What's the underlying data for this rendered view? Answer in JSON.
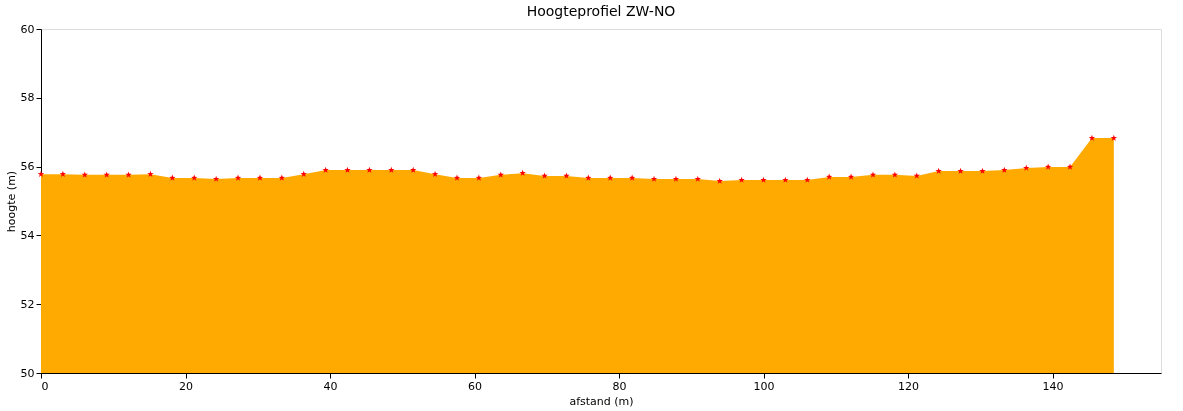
{
  "chart_data": {
    "type": "area",
    "title": "Hoogteprofiel ZW-NO",
    "xlabel": "afstand (m)",
    "ylabel": "hoogte (m)",
    "x": [
      0,
      3.03,
      6.06,
      9.09,
      12.12,
      15.15,
      18.18,
      21.21,
      24.24,
      27.27,
      30.3,
      33.33,
      36.36,
      39.39,
      42.42,
      45.45,
      48.48,
      51.51,
      54.54,
      57.57,
      60.6,
      63.63,
      66.66,
      69.69,
      72.72,
      75.75,
      78.78,
      81.81,
      84.84,
      87.87,
      90.9,
      93.93,
      96.96,
      99.99,
      103.02,
      106.05,
      109.08,
      112.11,
      115.14,
      118.17,
      121.2,
      124.23,
      127.26,
      130.29,
      133.32,
      136.35,
      139.38,
      142.41,
      145.44,
      148.47
    ],
    "series": [
      {
        "color": "#ffaa00",
        "values": [
          55.78,
          55.78,
          55.76,
          55.76,
          55.76,
          55.78,
          55.67,
          55.67,
          55.64,
          55.67,
          55.67,
          55.67,
          55.78,
          55.9,
          55.9,
          55.9,
          55.9,
          55.9,
          55.78,
          55.67,
          55.67,
          55.76,
          55.81,
          55.73,
          55.73,
          55.67,
          55.67,
          55.67,
          55.64,
          55.64,
          55.64,
          55.58,
          55.61,
          55.61,
          55.61,
          55.61,
          55.7,
          55.7,
          55.76,
          55.76,
          55.73,
          55.87,
          55.87,
          55.87,
          55.9,
          55.96,
          55.99,
          55.99,
          56.83,
          56.83
        ]
      },
      {
        "type": "scatter",
        "marker": "star",
        "color": "#ff0000",
        "values": [
          55.78,
          55.78,
          55.76,
          55.76,
          55.76,
          55.78,
          55.67,
          55.67,
          55.64,
          55.67,
          55.67,
          55.67,
          55.78,
          55.9,
          55.9,
          55.9,
          55.9,
          55.9,
          55.78,
          55.67,
          55.67,
          55.76,
          55.81,
          55.73,
          55.73,
          55.67,
          55.67,
          55.67,
          55.64,
          55.64,
          55.64,
          55.58,
          55.61,
          55.61,
          55.61,
          55.61,
          55.7,
          55.7,
          55.76,
          55.76,
          55.73,
          55.87,
          55.87,
          55.87,
          55.9,
          55.96,
          55.99,
          55.99,
          56.83,
          56.83
        ]
      }
    ],
    "xlim": [
      0,
      155
    ],
    "xticks": [
      0,
      20,
      40,
      60,
      80,
      100,
      120,
      140
    ],
    "ylim": [
      50,
      60
    ],
    "yticks": [
      50,
      52,
      54,
      56,
      58,
      60
    ],
    "grid": false,
    "legend": false
  }
}
